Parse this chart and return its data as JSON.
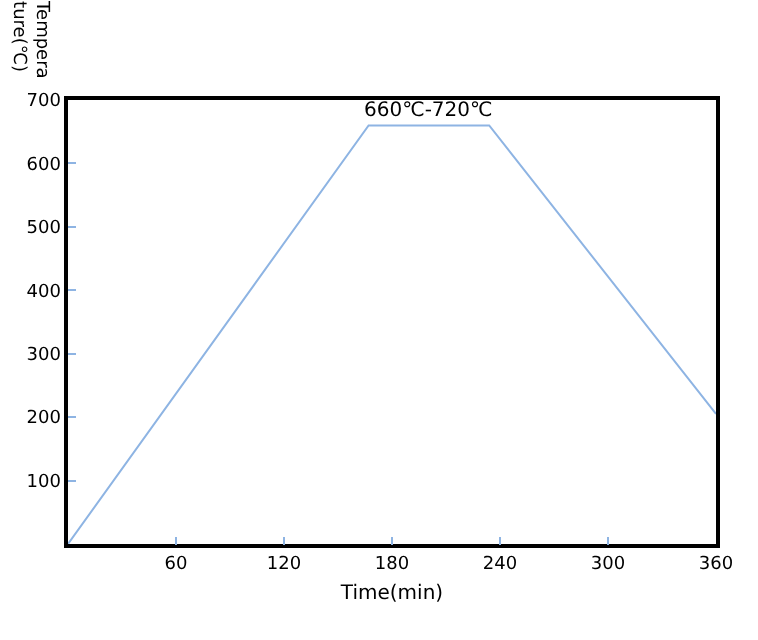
{
  "chart_data": {
    "type": "line",
    "xlabel": "Time(min)",
    "ylabel": "Temperature(℃)",
    "x": [
      0,
      167,
      234,
      360
    ],
    "series": [
      {
        "color": "#8eb4e3",
        "values": [
          0,
          660,
          660,
          205
        ]
      }
    ],
    "xlim": [
      0,
      360
    ],
    "xticks": [
      60,
      120,
      180,
      240,
      300,
      360
    ],
    "ylim": [
      0,
      700
    ],
    "yticks": [
      100,
      200,
      300,
      400,
      500,
      600,
      700
    ],
    "annotations": [
      {
        "text": "660℃-720℃",
        "x": 200,
        "y": 660
      }
    ],
    "marker": "none",
    "line_style": "solid"
  }
}
